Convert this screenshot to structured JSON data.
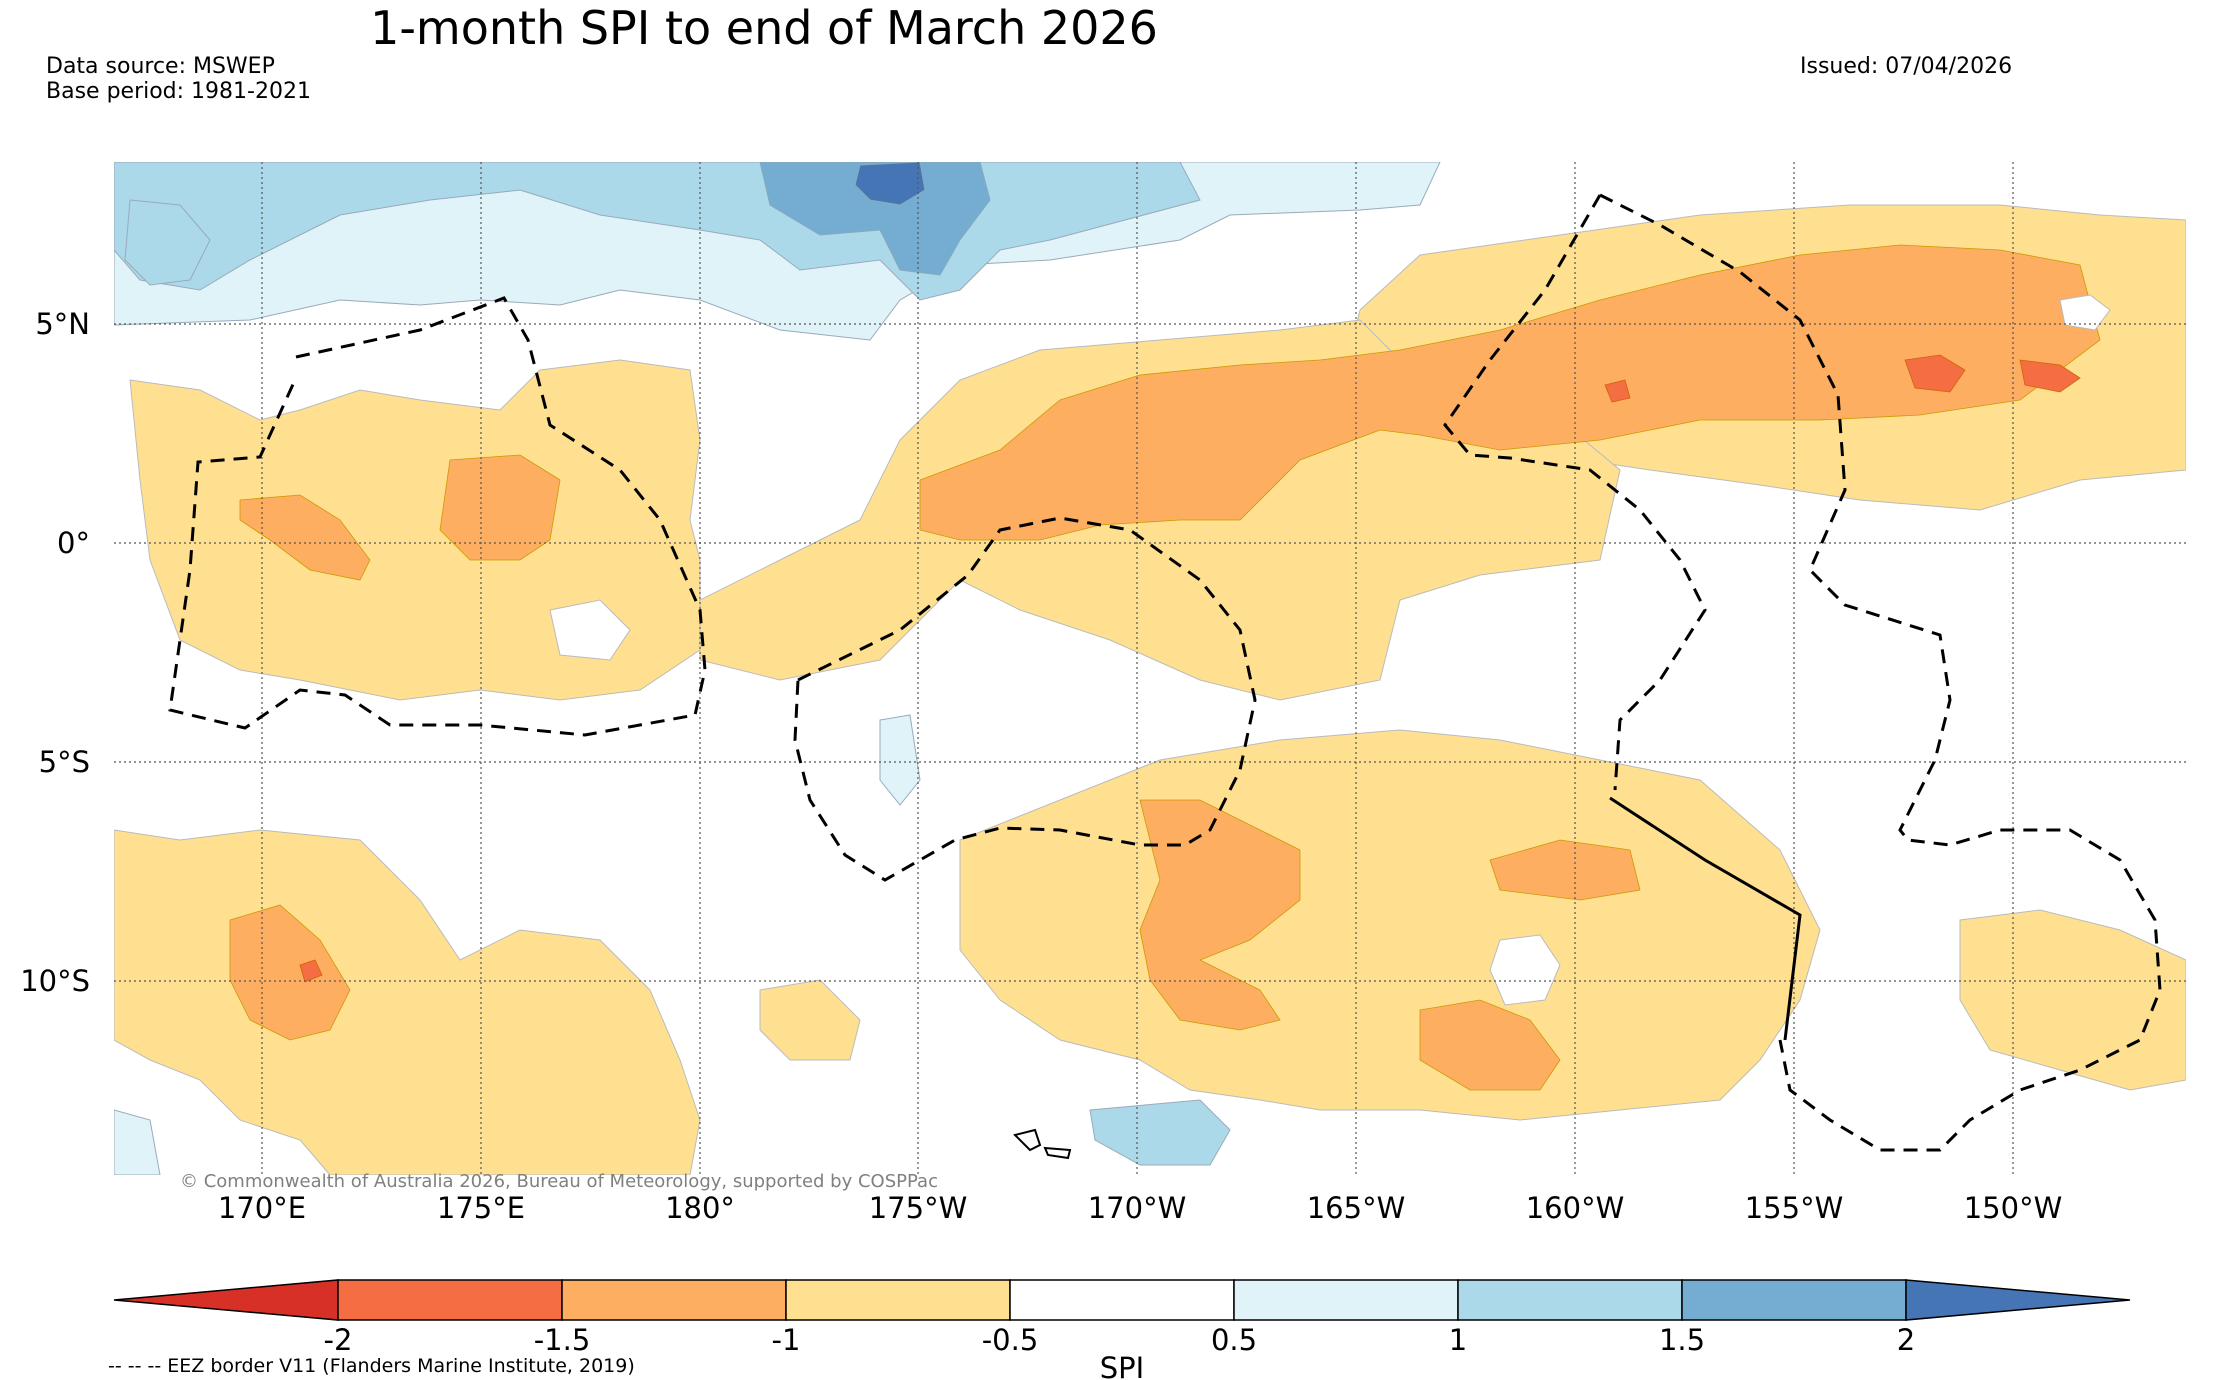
{
  "title": "1-month SPI to end of March 2026",
  "data_source": "Data source: MSWEP",
  "base_period": "Base period: 1981-2021",
  "issued": "Issued: 07/04/2026",
  "map": {
    "latitude_labels": [
      "5°N",
      "0°",
      "5°S",
      "10°S"
    ],
    "longitude_labels": [
      "170°E",
      "175°E",
      "180°",
      "175°W",
      "170°W",
      "165°W",
      "160°W",
      "155°W",
      "150°W"
    ],
    "copyright": "© Commonwealth of Australia 2026, Bureau of Meteorology, supported by COSPPac",
    "grid": true
  },
  "colorbar": {
    "label": "SPI",
    "tick_labels": [
      "-2",
      "-1.5",
      "-1",
      "-0.5",
      "0.5",
      "1",
      "1.5",
      "2"
    ],
    "colors": [
      "#d73027",
      "#f46d43",
      "#fdae61",
      "#fee090",
      "#ffffff",
      "#e0f3f8",
      "#abd9e9",
      "#74add1",
      "#4575b4"
    ],
    "extend": "both"
  },
  "legend_note": "-- -- -- EEZ border V11 (Flanders Marine Institute, 2019)"
}
